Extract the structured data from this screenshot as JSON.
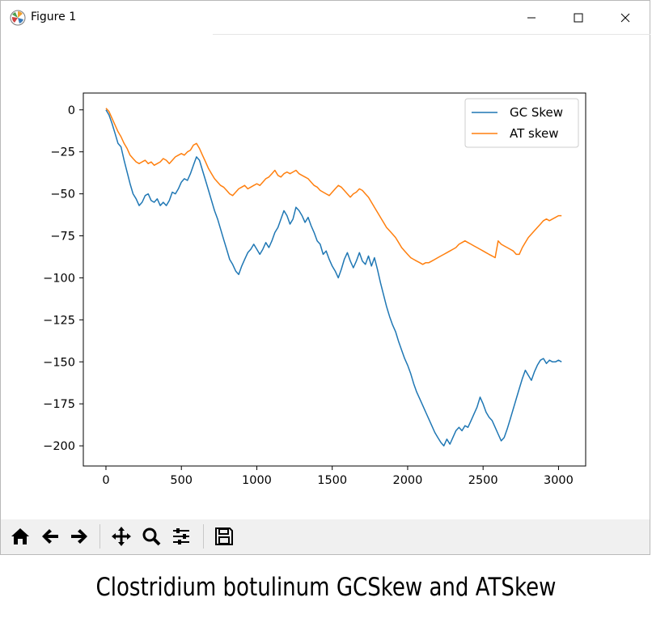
{
  "window": {
    "title": "Figure 1",
    "controls": {
      "minimize": "minimize-icon",
      "maximize": "maximize-icon",
      "close": "close-icon"
    }
  },
  "toolbar": {
    "buttons": [
      {
        "name": "home-button",
        "icon": "home-icon"
      },
      {
        "name": "back-button",
        "icon": "arrow-left-icon"
      },
      {
        "name": "forward-button",
        "icon": "arrow-right-icon"
      },
      {
        "name": "pan-button",
        "icon": "move-icon"
      },
      {
        "name": "zoom-button",
        "icon": "magnifier-icon"
      },
      {
        "name": "configure-subplots-button",
        "icon": "sliders-icon"
      },
      {
        "name": "save-button",
        "icon": "floppy-disk-icon"
      }
    ]
  },
  "caption": "Clostridium botulinum GCSkew and ATSkew",
  "chart_data": {
    "type": "line",
    "title": "",
    "xlabel": "",
    "ylabel": "",
    "xlim": [
      -150,
      3180
    ],
    "ylim": [
      -212,
      10
    ],
    "xticks": [
      0,
      500,
      1000,
      1500,
      2000,
      2500,
      3000
    ],
    "yticks": [
      0,
      -25,
      -50,
      -75,
      -100,
      -125,
      -150,
      -175,
      -200
    ],
    "legend_position": "top-right",
    "grid": false,
    "series": [
      {
        "name": "GC Skew",
        "color": "#1f77b4",
        "points": [
          [
            0,
            0
          ],
          [
            20,
            -3
          ],
          [
            40,
            -8
          ],
          [
            60,
            -14
          ],
          [
            80,
            -20
          ],
          [
            100,
            -22
          ],
          [
            120,
            -30
          ],
          [
            140,
            -37
          ],
          [
            160,
            -44
          ],
          [
            180,
            -50
          ],
          [
            200,
            -53
          ],
          [
            220,
            -57
          ],
          [
            240,
            -55
          ],
          [
            260,
            -51
          ],
          [
            280,
            -50
          ],
          [
            300,
            -54
          ],
          [
            320,
            -55
          ],
          [
            340,
            -53
          ],
          [
            360,
            -57
          ],
          [
            380,
            -55
          ],
          [
            400,
            -57
          ],
          [
            420,
            -54
          ],
          [
            440,
            -49
          ],
          [
            460,
            -50
          ],
          [
            480,
            -47
          ],
          [
            500,
            -43
          ],
          [
            520,
            -41
          ],
          [
            540,
            -42
          ],
          [
            560,
            -38
          ],
          [
            580,
            -33
          ],
          [
            600,
            -28
          ],
          [
            620,
            -30
          ],
          [
            640,
            -36
          ],
          [
            660,
            -42
          ],
          [
            680,
            -48
          ],
          [
            700,
            -54
          ],
          [
            720,
            -60
          ],
          [
            740,
            -65
          ],
          [
            760,
            -71
          ],
          [
            780,
            -77
          ],
          [
            800,
            -83
          ],
          [
            820,
            -89
          ],
          [
            840,
            -92
          ],
          [
            860,
            -96
          ],
          [
            880,
            -98
          ],
          [
            900,
            -93
          ],
          [
            920,
            -89
          ],
          [
            940,
            -85
          ],
          [
            960,
            -83
          ],
          [
            980,
            -80
          ],
          [
            1000,
            -83
          ],
          [
            1020,
            -86
          ],
          [
            1040,
            -83
          ],
          [
            1060,
            -79
          ],
          [
            1080,
            -82
          ],
          [
            1100,
            -78
          ],
          [
            1120,
            -73
          ],
          [
            1140,
            -70
          ],
          [
            1160,
            -65
          ],
          [
            1180,
            -60
          ],
          [
            1200,
            -63
          ],
          [
            1220,
            -68
          ],
          [
            1240,
            -65
          ],
          [
            1260,
            -58
          ],
          [
            1280,
            -60
          ],
          [
            1300,
            -63
          ],
          [
            1320,
            -67
          ],
          [
            1340,
            -64
          ],
          [
            1360,
            -69
          ],
          [
            1380,
            -73
          ],
          [
            1400,
            -78
          ],
          [
            1420,
            -80
          ],
          [
            1440,
            -86
          ],
          [
            1460,
            -84
          ],
          [
            1480,
            -89
          ],
          [
            1500,
            -93
          ],
          [
            1520,
            -96
          ],
          [
            1540,
            -100
          ],
          [
            1560,
            -95
          ],
          [
            1580,
            -89
          ],
          [
            1600,
            -85
          ],
          [
            1620,
            -90
          ],
          [
            1640,
            -94
          ],
          [
            1660,
            -90
          ],
          [
            1680,
            -85
          ],
          [
            1700,
            -90
          ],
          [
            1720,
            -92
          ],
          [
            1740,
            -87
          ],
          [
            1760,
            -93
          ],
          [
            1780,
            -88
          ],
          [
            1800,
            -95
          ],
          [
            1820,
            -103
          ],
          [
            1840,
            -110
          ],
          [
            1860,
            -117
          ],
          [
            1880,
            -123
          ],
          [
            1900,
            -128
          ],
          [
            1920,
            -132
          ],
          [
            1940,
            -138
          ],
          [
            1960,
            -143
          ],
          [
            1980,
            -148
          ],
          [
            2000,
            -152
          ],
          [
            2020,
            -157
          ],
          [
            2040,
            -163
          ],
          [
            2060,
            -168
          ],
          [
            2080,
            -172
          ],
          [
            2100,
            -176
          ],
          [
            2120,
            -180
          ],
          [
            2140,
            -184
          ],
          [
            2160,
            -188
          ],
          [
            2180,
            -192
          ],
          [
            2200,
            -195
          ],
          [
            2220,
            -198
          ],
          [
            2240,
            -200
          ],
          [
            2260,
            -196
          ],
          [
            2280,
            -199
          ],
          [
            2300,
            -195
          ],
          [
            2320,
            -191
          ],
          [
            2340,
            -189
          ],
          [
            2360,
            -191
          ],
          [
            2380,
            -188
          ],
          [
            2400,
            -189
          ],
          [
            2420,
            -185
          ],
          [
            2440,
            -181
          ],
          [
            2460,
            -177
          ],
          [
            2480,
            -171
          ],
          [
            2500,
            -175
          ],
          [
            2520,
            -180
          ],
          [
            2540,
            -183
          ],
          [
            2560,
            -185
          ],
          [
            2580,
            -189
          ],
          [
            2600,
            -193
          ],
          [
            2620,
            -197
          ],
          [
            2640,
            -195
          ],
          [
            2660,
            -190
          ],
          [
            2680,
            -184
          ],
          [
            2700,
            -178
          ],
          [
            2720,
            -172
          ],
          [
            2740,
            -166
          ],
          [
            2760,
            -160
          ],
          [
            2780,
            -155
          ],
          [
            2800,
            -158
          ],
          [
            2820,
            -161
          ],
          [
            2840,
            -156
          ],
          [
            2860,
            -152
          ],
          [
            2880,
            -149
          ],
          [
            2900,
            -148
          ],
          [
            2920,
            -151
          ],
          [
            2940,
            -149
          ],
          [
            2960,
            -150
          ],
          [
            2980,
            -150
          ],
          [
            3000,
            -149
          ],
          [
            3020,
            -150
          ]
        ]
      },
      {
        "name": "AT skew",
        "color": "#ff7f0e",
        "points": [
          [
            0,
            1
          ],
          [
            20,
            -1
          ],
          [
            40,
            -5
          ],
          [
            60,
            -9
          ],
          [
            80,
            -13
          ],
          [
            100,
            -16
          ],
          [
            120,
            -20
          ],
          [
            140,
            -23
          ],
          [
            160,
            -27
          ],
          [
            180,
            -29
          ],
          [
            200,
            -31
          ],
          [
            220,
            -32
          ],
          [
            240,
            -31
          ],
          [
            260,
            -30
          ],
          [
            280,
            -32
          ],
          [
            300,
            -31
          ],
          [
            320,
            -33
          ],
          [
            340,
            -32
          ],
          [
            360,
            -31
          ],
          [
            380,
            -29
          ],
          [
            400,
            -30
          ],
          [
            420,
            -32
          ],
          [
            440,
            -30
          ],
          [
            460,
            -28
          ],
          [
            480,
            -27
          ],
          [
            500,
            -26
          ],
          [
            520,
            -27
          ],
          [
            540,
            -25
          ],
          [
            560,
            -24
          ],
          [
            580,
            -21
          ],
          [
            600,
            -20
          ],
          [
            620,
            -23
          ],
          [
            640,
            -27
          ],
          [
            660,
            -31
          ],
          [
            680,
            -35
          ],
          [
            700,
            -38
          ],
          [
            720,
            -41
          ],
          [
            740,
            -43
          ],
          [
            760,
            -45
          ],
          [
            780,
            -46
          ],
          [
            800,
            -48
          ],
          [
            820,
            -50
          ],
          [
            840,
            -51
          ],
          [
            860,
            -49
          ],
          [
            880,
            -47
          ],
          [
            900,
            -46
          ],
          [
            920,
            -45
          ],
          [
            940,
            -47
          ],
          [
            960,
            -46
          ],
          [
            980,
            -45
          ],
          [
            1000,
            -44
          ],
          [
            1020,
            -45
          ],
          [
            1040,
            -43
          ],
          [
            1060,
            -41
          ],
          [
            1080,
            -40
          ],
          [
            1100,
            -38
          ],
          [
            1120,
            -36
          ],
          [
            1140,
            -39
          ],
          [
            1160,
            -40
          ],
          [
            1180,
            -38
          ],
          [
            1200,
            -37
          ],
          [
            1220,
            -38
          ],
          [
            1240,
            -37
          ],
          [
            1260,
            -36
          ],
          [
            1280,
            -38
          ],
          [
            1300,
            -39
          ],
          [
            1320,
            -40
          ],
          [
            1340,
            -41
          ],
          [
            1360,
            -43
          ],
          [
            1380,
            -45
          ],
          [
            1400,
            -46
          ],
          [
            1420,
            -48
          ],
          [
            1440,
            -49
          ],
          [
            1460,
            -50
          ],
          [
            1480,
            -51
          ],
          [
            1500,
            -49
          ],
          [
            1520,
            -47
          ],
          [
            1540,
            -45
          ],
          [
            1560,
            -46
          ],
          [
            1580,
            -48
          ],
          [
            1600,
            -50
          ],
          [
            1620,
            -52
          ],
          [
            1640,
            -50
          ],
          [
            1660,
            -49
          ],
          [
            1680,
            -47
          ],
          [
            1700,
            -48
          ],
          [
            1720,
            -50
          ],
          [
            1740,
            -52
          ],
          [
            1760,
            -55
          ],
          [
            1780,
            -58
          ],
          [
            1800,
            -61
          ],
          [
            1820,
            -64
          ],
          [
            1840,
            -67
          ],
          [
            1860,
            -70
          ],
          [
            1880,
            -72
          ],
          [
            1900,
            -74
          ],
          [
            1920,
            -76
          ],
          [
            1940,
            -79
          ],
          [
            1960,
            -82
          ],
          [
            1980,
            -84
          ],
          [
            2000,
            -86
          ],
          [
            2020,
            -88
          ],
          [
            2040,
            -89
          ],
          [
            2060,
            -90
          ],
          [
            2080,
            -91
          ],
          [
            2100,
            -92
          ],
          [
            2120,
            -91
          ],
          [
            2140,
            -91
          ],
          [
            2160,
            -90
          ],
          [
            2180,
            -89
          ],
          [
            2200,
            -88
          ],
          [
            2220,
            -87
          ],
          [
            2240,
            -86
          ],
          [
            2260,
            -85
          ],
          [
            2280,
            -84
          ],
          [
            2300,
            -83
          ],
          [
            2320,
            -82
          ],
          [
            2340,
            -80
          ],
          [
            2360,
            -79
          ],
          [
            2380,
            -78
          ],
          [
            2400,
            -79
          ],
          [
            2420,
            -80
          ],
          [
            2440,
            -81
          ],
          [
            2460,
            -82
          ],
          [
            2480,
            -83
          ],
          [
            2500,
            -84
          ],
          [
            2520,
            -85
          ],
          [
            2540,
            -86
          ],
          [
            2560,
            -87
          ],
          [
            2580,
            -88
          ],
          [
            2600,
            -78
          ],
          [
            2620,
            -80
          ],
          [
            2640,
            -81
          ],
          [
            2660,
            -82
          ],
          [
            2680,
            -83
          ],
          [
            2700,
            -84
          ],
          [
            2720,
            -86
          ],
          [
            2740,
            -86
          ],
          [
            2760,
            -82
          ],
          [
            2780,
            -79
          ],
          [
            2800,
            -76
          ],
          [
            2820,
            -74
          ],
          [
            2840,
            -72
          ],
          [
            2860,
            -70
          ],
          [
            2880,
            -68
          ],
          [
            2900,
            -66
          ],
          [
            2920,
            -65
          ],
          [
            2940,
            -66
          ],
          [
            2960,
            -65
          ],
          [
            2980,
            -64
          ],
          [
            3000,
            -63
          ],
          [
            3020,
            -63
          ]
        ]
      }
    ]
  }
}
